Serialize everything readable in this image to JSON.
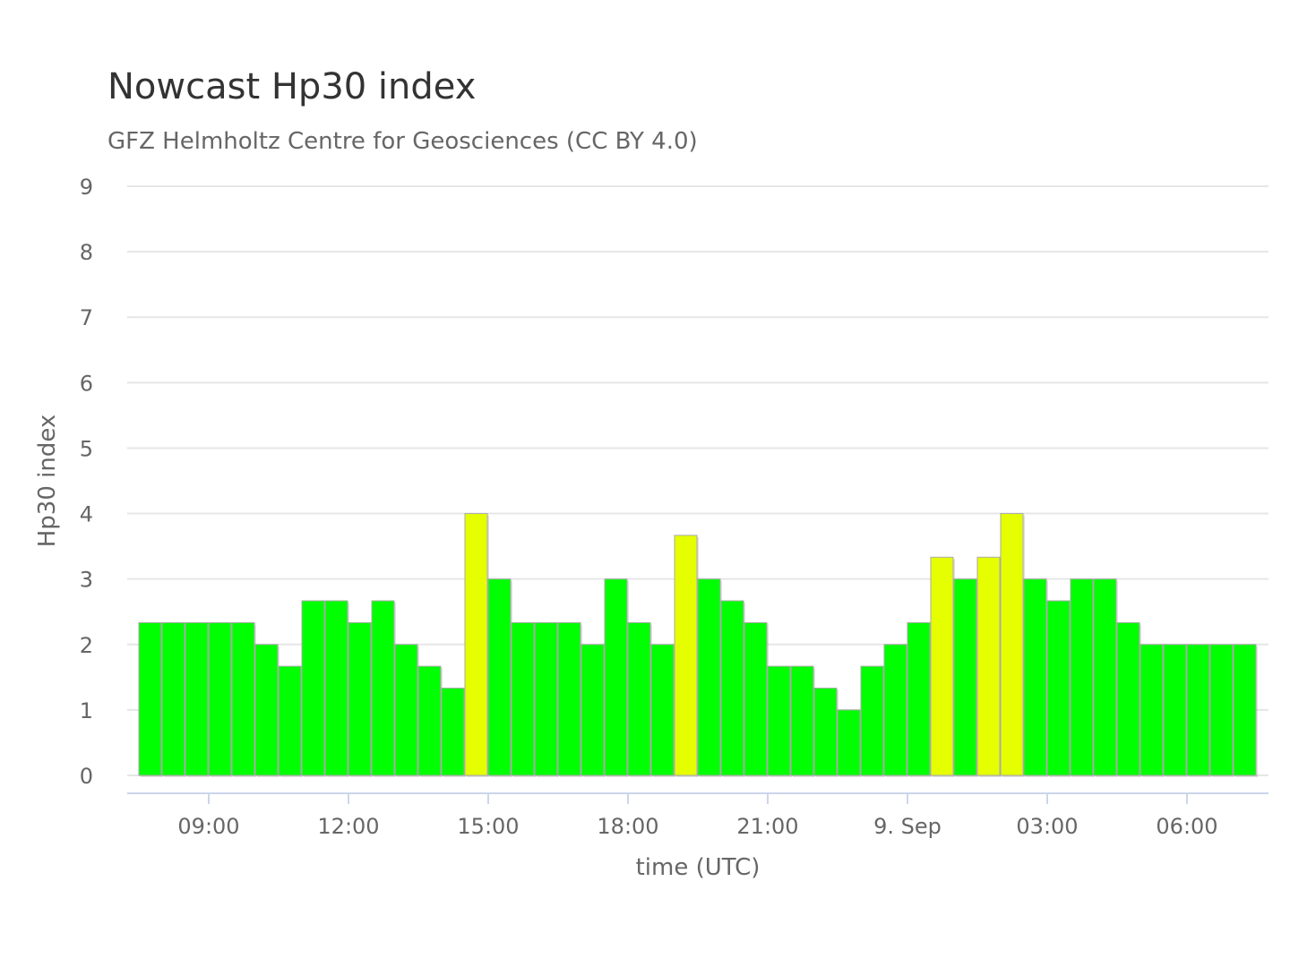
{
  "chart_data": {
    "type": "bar",
    "title": "Nowcast Hp30 index",
    "subtitle": "GFZ Helmholtz Centre for Geosciences (CC BY 4.0)",
    "xlabel": "time (UTC)",
    "ylabel": "Hp30 index",
    "ylim": [
      0,
      9
    ],
    "yticks": [
      "0",
      "1",
      "2",
      "3",
      "4",
      "5",
      "6",
      "7",
      "8",
      "9"
    ],
    "x_start": "8 Sep 07:30",
    "x_end": "9 Sep 07:30",
    "interval": "30 min",
    "xticks": [
      {
        "label": "09:00",
        "value": "8 Sep 09:00"
      },
      {
        "label": "12:00",
        "value": "8 Sep 12:00"
      },
      {
        "label": "15:00",
        "value": "8 Sep 15:00"
      },
      {
        "label": "18:00",
        "value": "8 Sep 18:00"
      },
      {
        "label": "21:00",
        "value": "8 Sep 21:00"
      },
      {
        "label": "9. Sep",
        "value": "9 Sep 00:00"
      },
      {
        "label": "03:00",
        "value": "9 Sep 03:00"
      },
      {
        "label": "06:00",
        "value": "9 Sep 06:00"
      }
    ],
    "grid": true,
    "legend": "none",
    "colors": {
      "normal": "#00ff00",
      "elevated": "#e5ff00",
      "bar_edge": "#aaaaaa"
    },
    "values": [
      2.333,
      2.333,
      2.333,
      2.333,
      2.333,
      2.0,
      1.667,
      2.667,
      2.667,
      2.333,
      2.667,
      2.0,
      1.667,
      1.333,
      4.0,
      3.0,
      2.333,
      2.333,
      2.333,
      2.0,
      3.0,
      2.333,
      2.0,
      3.667,
      3.0,
      2.667,
      2.333,
      1.667,
      1.667,
      1.333,
      1.0,
      1.667,
      2.0,
      2.333,
      3.333,
      3.0,
      3.333,
      4.0,
      3.0,
      2.667,
      3.0,
      3.0,
      2.333,
      2.0,
      2.0,
      2.0,
      2.0,
      2.0
    ],
    "elevated": [
      false,
      false,
      false,
      false,
      false,
      false,
      false,
      false,
      false,
      false,
      false,
      false,
      false,
      false,
      true,
      false,
      false,
      false,
      false,
      false,
      false,
      false,
      false,
      true,
      false,
      false,
      false,
      false,
      false,
      false,
      false,
      false,
      false,
      false,
      true,
      false,
      true,
      true,
      false,
      false,
      false,
      false,
      false,
      false,
      false,
      false,
      false,
      false
    ]
  }
}
